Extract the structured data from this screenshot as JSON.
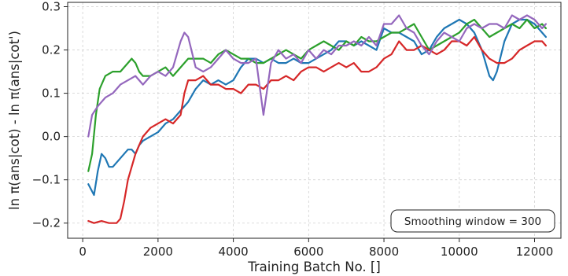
{
  "chart_data": {
    "type": "line",
    "title": "",
    "xlabel": "Training Batch No. []",
    "ylabel": "ln π(ans|cot) - ln π(ans|cot')",
    "xlim": [
      -400,
      12700
    ],
    "ylim": [
      -0.235,
      0.31
    ],
    "xticks": [
      0,
      2000,
      4000,
      6000,
      8000,
      10000,
      12000
    ],
    "yticks": [
      -0.2,
      -0.1,
      0.0,
      0.1,
      0.2,
      0.3
    ],
    "xtick_labels": [
      "0",
      "2000",
      "4000",
      "6000",
      "8000",
      "10000",
      "12000"
    ],
    "ytick_labels": [
      "−0.2",
      "−0.1",
      "0.0",
      "0.1",
      "0.2",
      "0.3"
    ],
    "grid": true,
    "annotation": "Smoothing window = 300",
    "annotation_position": "bottom-right",
    "series": [
      {
        "color": "#1f77b4",
        "x": [
          150,
          300,
          400,
          500,
          600,
          700,
          800,
          900,
          1000,
          1100,
          1200,
          1300,
          1400,
          1500,
          1600,
          1800,
          2000,
          2200,
          2400,
          2600,
          2800,
          3000,
          3200,
          3400,
          3600,
          3800,
          4000,
          4200,
          4400,
          4600,
          4800,
          5000,
          5200,
          5400,
          5600,
          5800,
          6000,
          6200,
          6400,
          6600,
          6800,
          7000,
          7200,
          7400,
          7600,
          7800,
          8000,
          8200,
          8400,
          8600,
          8800,
          9000,
          9200,
          9400,
          9600,
          9800,
          10000,
          10200,
          10400,
          10600,
          10800,
          10900,
          11000,
          11200,
          11400,
          11600,
          11800,
          12000,
          12200,
          12300
        ],
        "y": [
          -0.11,
          -0.135,
          -0.08,
          -0.04,
          -0.05,
          -0.07,
          -0.07,
          -0.06,
          -0.05,
          -0.04,
          -0.03,
          -0.03,
          -0.04,
          -0.02,
          -0.01,
          0.0,
          0.01,
          0.03,
          0.04,
          0.06,
          0.08,
          0.11,
          0.13,
          0.12,
          0.13,
          0.12,
          0.13,
          0.16,
          0.18,
          0.18,
          0.17,
          0.18,
          0.17,
          0.17,
          0.18,
          0.17,
          0.17,
          0.18,
          0.19,
          0.2,
          0.22,
          0.22,
          0.21,
          0.22,
          0.21,
          0.2,
          0.25,
          0.24,
          0.24,
          0.23,
          0.22,
          0.19,
          0.2,
          0.23,
          0.25,
          0.26,
          0.27,
          0.26,
          0.24,
          0.2,
          0.14,
          0.13,
          0.15,
          0.22,
          0.26,
          0.27,
          0.27,
          0.26,
          0.24,
          0.23
        ]
      },
      {
        "color": "#2ca02c",
        "x": [
          150,
          250,
          350,
          450,
          600,
          800,
          1000,
          1200,
          1300,
          1400,
          1500,
          1600,
          1800,
          2000,
          2200,
          2400,
          2600,
          2800,
          3000,
          3200,
          3400,
          3600,
          3800,
          4000,
          4200,
          4400,
          4600,
          4800,
          5000,
          5200,
          5400,
          5600,
          5800,
          6000,
          6200,
          6400,
          6600,
          6800,
          7000,
          7200,
          7400,
          7600,
          7800,
          8000,
          8200,
          8400,
          8600,
          8800,
          9000,
          9200,
          9400,
          9600,
          9800,
          10000,
          10200,
          10400,
          10600,
          10800,
          11000,
          11200,
          11400,
          11600,
          11800,
          12000,
          12200,
          12300
        ],
        "y": [
          -0.08,
          -0.04,
          0.05,
          0.11,
          0.14,
          0.15,
          0.15,
          0.17,
          0.18,
          0.17,
          0.15,
          0.14,
          0.14,
          0.15,
          0.16,
          0.14,
          0.16,
          0.18,
          0.18,
          0.18,
          0.17,
          0.19,
          0.2,
          0.19,
          0.18,
          0.18,
          0.17,
          0.17,
          0.18,
          0.19,
          0.2,
          0.19,
          0.18,
          0.2,
          0.21,
          0.22,
          0.21,
          0.2,
          0.22,
          0.21,
          0.23,
          0.22,
          0.22,
          0.23,
          0.24,
          0.24,
          0.25,
          0.26,
          0.23,
          0.2,
          0.21,
          0.22,
          0.23,
          0.24,
          0.26,
          0.27,
          0.25,
          0.23,
          0.24,
          0.25,
          0.26,
          0.25,
          0.27,
          0.25,
          0.26,
          0.25
        ]
      },
      {
        "color": "#d62728",
        "x": [
          150,
          300,
          500,
          700,
          900,
          1000,
          1100,
          1200,
          1300,
          1400,
          1500,
          1600,
          1800,
          2000,
          2200,
          2400,
          2600,
          2700,
          2800,
          3000,
          3200,
          3400,
          3600,
          3800,
          4000,
          4200,
          4400,
          4600,
          4800,
          5000,
          5200,
          5400,
          5600,
          5800,
          6000,
          6200,
          6400,
          6600,
          6800,
          7000,
          7200,
          7400,
          7600,
          7800,
          8000,
          8200,
          8400,
          8600,
          8800,
          9000,
          9200,
          9400,
          9600,
          9800,
          10000,
          10200,
          10400,
          10600,
          10800,
          11000,
          11200,
          11400,
          11600,
          11800,
          12000,
          12200,
          12300
        ],
        "y": [
          -0.195,
          -0.2,
          -0.195,
          -0.2,
          -0.2,
          -0.19,
          -0.15,
          -0.1,
          -0.07,
          -0.04,
          -0.02,
          0.0,
          0.02,
          0.03,
          0.04,
          0.03,
          0.05,
          0.1,
          0.13,
          0.13,
          0.14,
          0.12,
          0.12,
          0.11,
          0.11,
          0.1,
          0.12,
          0.12,
          0.11,
          0.13,
          0.13,
          0.14,
          0.13,
          0.15,
          0.16,
          0.16,
          0.15,
          0.16,
          0.17,
          0.16,
          0.17,
          0.15,
          0.15,
          0.16,
          0.18,
          0.19,
          0.22,
          0.2,
          0.2,
          0.21,
          0.2,
          0.19,
          0.2,
          0.22,
          0.22,
          0.21,
          0.23,
          0.2,
          0.18,
          0.17,
          0.17,
          0.18,
          0.2,
          0.21,
          0.22,
          0.22,
          0.21
        ]
      },
      {
        "color": "#9467bd",
        "x": [
          150,
          250,
          400,
          600,
          800,
          1000,
          1200,
          1400,
          1600,
          1800,
          2000,
          2200,
          2400,
          2600,
          2700,
          2800,
          3000,
          3200,
          3400,
          3600,
          3800,
          4000,
          4200,
          4400,
          4600,
          4800,
          5000,
          5200,
          5400,
          5600,
          5800,
          6000,
          6200,
          6400,
          6600,
          6800,
          7000,
          7200,
          7400,
          7600,
          7800,
          8000,
          8200,
          8400,
          8600,
          8800,
          9000,
          9200,
          9400,
          9600,
          9800,
          10000,
          10200,
          10400,
          10600,
          10800,
          11000,
          11200,
          11400,
          11600,
          11800,
          12000,
          12200,
          12300
        ],
        "y": [
          0.0,
          0.05,
          0.07,
          0.09,
          0.1,
          0.12,
          0.13,
          0.14,
          0.12,
          0.14,
          0.15,
          0.14,
          0.16,
          0.22,
          0.24,
          0.23,
          0.16,
          0.15,
          0.16,
          0.18,
          0.2,
          0.18,
          0.17,
          0.17,
          0.18,
          0.05,
          0.17,
          0.2,
          0.18,
          0.19,
          0.17,
          0.2,
          0.18,
          0.2,
          0.19,
          0.21,
          0.21,
          0.22,
          0.21,
          0.23,
          0.21,
          0.26,
          0.26,
          0.28,
          0.25,
          0.24,
          0.21,
          0.19,
          0.22,
          0.24,
          0.23,
          0.22,
          0.25,
          0.26,
          0.25,
          0.26,
          0.26,
          0.25,
          0.28,
          0.27,
          0.28,
          0.27,
          0.25,
          0.26
        ]
      }
    ]
  }
}
